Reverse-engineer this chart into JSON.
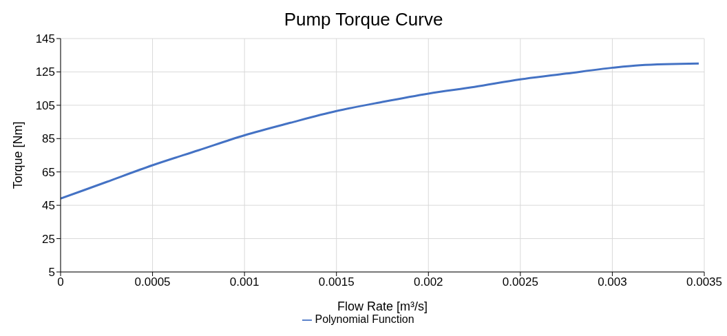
{
  "chart_data": {
    "type": "line",
    "title": "Pump Torque Curve",
    "xlabel": "Flow Rate [m³/s]",
    "ylabel": "Torque [Nm]",
    "x": [
      0,
      0.00025,
      0.0005,
      0.00075,
      0.001,
      0.00125,
      0.0015,
      0.00175,
      0.002,
      0.00225,
      0.0025,
      0.00275,
      0.003,
      0.00315,
      0.00347
    ],
    "series": [
      {
        "name": "Polynomial Function",
        "color": "#4472c4",
        "values": [
          49,
          59,
          69,
          78,
          87,
          94.5,
          101.5,
          107,
          112,
          116,
          120.5,
          124,
          127.5,
          129,
          130
        ]
      }
    ],
    "xlim": [
      0,
      0.0035
    ],
    "xticks": [
      0,
      0.0005,
      0.001,
      0.0015,
      0.002,
      0.0025,
      0.003,
      0.0035
    ],
    "ylim": [
      5,
      145
    ],
    "yticks": [
      5,
      25,
      45,
      65,
      85,
      105,
      125,
      145
    ],
    "grid": true,
    "legend": "bottom",
    "marker": "none",
    "line_style": "solid"
  }
}
